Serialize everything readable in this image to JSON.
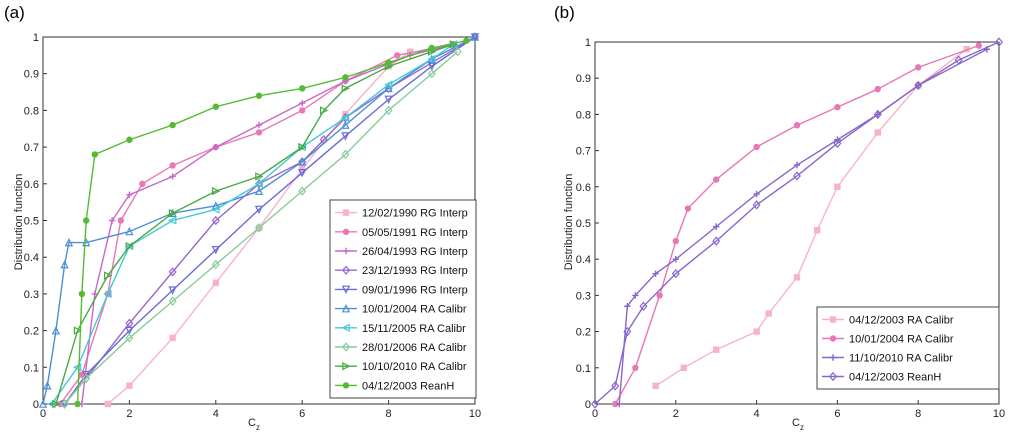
{
  "chart_data": [
    {
      "type": "line",
      "panel": "(a)",
      "xlabel": "C",
      "xlabel_sub": "z",
      "ylabel": "Distribution function",
      "xlim": [
        0,
        10
      ],
      "ylim": [
        0,
        1
      ],
      "xticks": [
        "0",
        "2",
        "4",
        "6",
        "8",
        "10"
      ],
      "xtick_values": [
        0,
        2,
        4,
        6,
        8,
        10
      ],
      "yticks": [
        "0",
        "0.1",
        "0.2",
        "0.3",
        "0.4",
        "0.5",
        "0.6",
        "0.7",
        "0.8",
        "0.9",
        "1"
      ],
      "ytick_values": [
        0,
        0.1,
        0.2,
        0.3,
        0.4,
        0.5,
        0.6,
        0.7,
        0.8,
        0.9,
        1
      ],
      "legend_position": "bottom-right",
      "series": [
        {
          "name": "12/02/1990 RG Interp",
          "color": "#f7b3c6",
          "marker": "square",
          "x": [
            1.5,
            2,
            3,
            4,
            5,
            6,
            7,
            8,
            8.5
          ],
          "y": [
            0,
            0.05,
            0.18,
            0.33,
            0.48,
            0.64,
            0.79,
            0.92,
            0.96
          ]
        },
        {
          "name": "05/05/1991 RG Interp",
          "color": "#e878b4",
          "marker": "circle",
          "x": [
            0.4,
            0.9,
            1.5,
            1.8,
            2.3,
            3,
            4,
            5,
            6,
            7,
            8.2,
            9.5
          ],
          "y": [
            0,
            0.08,
            0.3,
            0.5,
            0.6,
            0.65,
            0.7,
            0.74,
            0.8,
            0.88,
            0.95,
            0.98
          ]
        },
        {
          "name": "26/04/1993 RG Interp",
          "color": "#c868c8",
          "marker": "plus",
          "x": [
            0.9,
            1.2,
            1.6,
            2,
            3,
            4,
            5,
            6,
            7,
            8.5,
            9.5
          ],
          "y": [
            0,
            0.3,
            0.5,
            0.57,
            0.62,
            0.7,
            0.76,
            0.82,
            0.88,
            0.95,
            0.98
          ]
        },
        {
          "name": "23/12/1993 RG Interp",
          "color": "#9966cc",
          "marker": "diamond",
          "x": [
            0.5,
            1,
            2,
            3,
            4,
            5,
            6,
            6.5,
            7,
            8,
            9,
            10
          ],
          "y": [
            0,
            0.07,
            0.22,
            0.36,
            0.5,
            0.6,
            0.66,
            0.72,
            0.78,
            0.86,
            0.93,
            1
          ]
        },
        {
          "name": "09/01/1996 RG Interp",
          "color": "#6a6ad8",
          "marker": "triangle-down",
          "x": [
            0.5,
            1,
            2,
            3,
            4,
            5,
            6,
            7,
            8,
            9,
            10
          ],
          "y": [
            0,
            0.08,
            0.2,
            0.31,
            0.42,
            0.53,
            0.63,
            0.73,
            0.83,
            0.92,
            1
          ]
        },
        {
          "name": "10/01/2004 RA Calibr",
          "color": "#4a8fd8",
          "marker": "triangle-up",
          "x": [
            0,
            0.1,
            0.3,
            0.5,
            0.6,
            1,
            2,
            3,
            4,
            5,
            6,
            7,
            8,
            9,
            10
          ],
          "y": [
            0,
            0.05,
            0.2,
            0.38,
            0.44,
            0.44,
            0.47,
            0.52,
            0.54,
            0.58,
            0.66,
            0.76,
            0.86,
            0.94,
            1
          ]
        },
        {
          "name": "15/11/2005 RA Calibr",
          "color": "#44c8d8",
          "marker": "triangle-left",
          "x": [
            0.2,
            0.8,
            1.5,
            2,
            3,
            4,
            5,
            6,
            7,
            8,
            9,
            9.5
          ],
          "y": [
            0,
            0.1,
            0.3,
            0.43,
            0.5,
            0.53,
            0.6,
            0.7,
            0.78,
            0.87,
            0.94,
            0.98
          ]
        },
        {
          "name": "28/01/2006 RA Calibr",
          "color": "#88cc99",
          "marker": "diamond",
          "x": [
            0.5,
            1,
            2,
            3,
            4,
            5,
            6,
            7,
            8,
            9,
            9.6
          ],
          "y": [
            0,
            0.07,
            0.18,
            0.28,
            0.38,
            0.48,
            0.58,
            0.68,
            0.8,
            0.9,
            0.96
          ]
        },
        {
          "name": "10/10/2010 RA Calibr",
          "color": "#44aa44",
          "marker": "triangle-right",
          "x": [
            0.3,
            0.8,
            1.5,
            2,
            3,
            4,
            5,
            6,
            6.5,
            7,
            8,
            9,
            9.5
          ],
          "y": [
            0,
            0.2,
            0.35,
            0.43,
            0.52,
            0.58,
            0.62,
            0.7,
            0.8,
            0.86,
            0.92,
            0.96,
            0.98
          ]
        },
        {
          "name": "04/12/2003 ReanH",
          "color": "#55bb33",
          "marker": "circle",
          "x": [
            0.8,
            0.9,
            1,
            1.2,
            2,
            3,
            4,
            5,
            6,
            7,
            8,
            9,
            9.8
          ],
          "y": [
            0,
            0.3,
            0.5,
            0.68,
            0.72,
            0.76,
            0.81,
            0.84,
            0.86,
            0.89,
            0.93,
            0.97,
            0.99
          ]
        }
      ]
    },
    {
      "type": "line",
      "panel": "(b)",
      "xlabel": "C",
      "xlabel_sub": "z",
      "ylabel": "Distribution function",
      "xlim": [
        0,
        10
      ],
      "ylim": [
        0,
        1
      ],
      "xticks": [
        "0",
        "2",
        "4",
        "6",
        "8",
        "10"
      ],
      "xtick_values": [
        0,
        2,
        4,
        6,
        8,
        10
      ],
      "yticks": [
        "0",
        "0.1",
        "0.2",
        "0.3",
        "0.4",
        "0.5",
        "0.6",
        "0.7",
        "0.8",
        "0.9",
        "1"
      ],
      "ytick_values": [
        0,
        0.1,
        0.2,
        0.3,
        0.4,
        0.5,
        0.6,
        0.7,
        0.8,
        0.9,
        1
      ],
      "legend_position": "bottom-right",
      "series": [
        {
          "name": "04/12/2003 RA Calibr",
          "color": "#f7b3c6",
          "marker": "square",
          "x": [
            1.5,
            2.2,
            3,
            4,
            4.3,
            5,
            5.5,
            6,
            7,
            8,
            9.2
          ],
          "y": [
            0.05,
            0.1,
            0.15,
            0.2,
            0.25,
            0.35,
            0.48,
            0.6,
            0.75,
            0.88,
            0.98
          ]
        },
        {
          "name": "10/01/2004 RA Calibr",
          "color": "#e878b4",
          "marker": "circle",
          "x": [
            0.5,
            1,
            1.6,
            2,
            2.3,
            3,
            4,
            5,
            6,
            7,
            8,
            9.5
          ],
          "y": [
            0,
            0.1,
            0.3,
            0.45,
            0.54,
            0.62,
            0.71,
            0.77,
            0.82,
            0.87,
            0.93,
            0.99
          ]
        },
        {
          "name": "11/10/2010 RA Calibr",
          "color": "#8866cc",
          "marker": "plus",
          "x": [
            0.6,
            0.8,
            1,
            1.5,
            2,
            3,
            4,
            5,
            6,
            7,
            8,
            9.7
          ],
          "y": [
            0,
            0.27,
            0.3,
            0.36,
            0.4,
            0.49,
            0.58,
            0.66,
            0.73,
            0.8,
            0.88,
            0.98
          ]
        },
        {
          "name": "04/12/2003 ReanH",
          "color": "#8866cc",
          "marker": "diamond",
          "x": [
            0,
            0.5,
            0.8,
            1.2,
            2,
            3,
            4,
            5,
            6,
            7,
            8,
            9,
            10
          ],
          "y": [
            0,
            0.05,
            0.2,
            0.27,
            0.36,
            0.45,
            0.55,
            0.63,
            0.72,
            0.8,
            0.88,
            0.95,
            1
          ]
        }
      ]
    }
  ]
}
